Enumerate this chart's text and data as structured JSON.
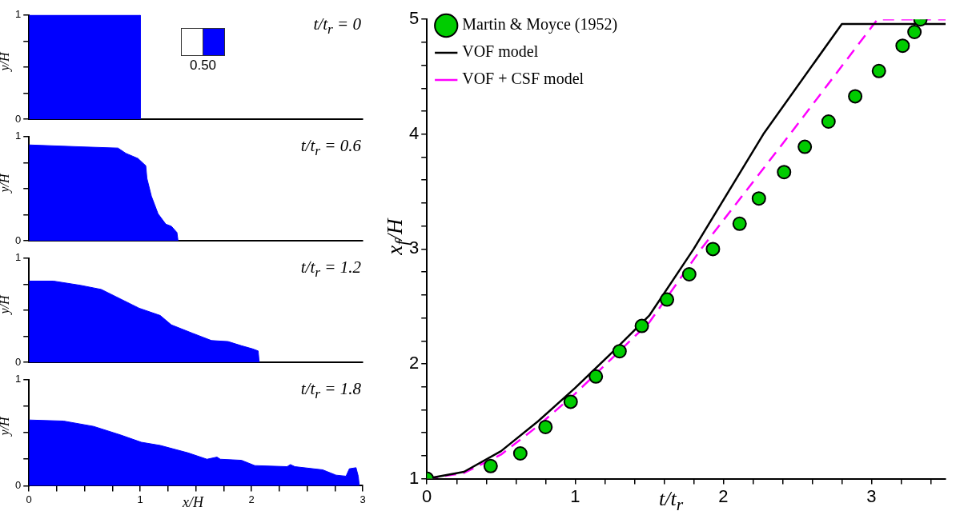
{
  "chart_data": [
    {
      "type": "area",
      "title": "t/t$_{r}$ = 0",
      "ylabel": "y/H",
      "annotations": [
        "0.50"
      ],
      "xlim": [
        0,
        3
      ],
      "ylim": [
        0,
        1
      ],
      "yticks": [
        0,
        {
          "value": 0.25,
          "label": null
        },
        {
          "value": 0.5,
          "label": null
        },
        {
          "value": 0.75,
          "label": null
        },
        1
      ],
      "tick_labels": "y",
      "color": "#0000ff",
      "x": [
        0,
        1,
        1
      ],
      "values": [
        1,
        1,
        0
      ]
    },
    {
      "type": "area",
      "title": "t/t$_{r}$ = 0.6",
      "ylabel": "y/H",
      "xlim": [
        0,
        3
      ],
      "ylim": [
        0,
        1
      ],
      "yticks": [
        0,
        {
          "value": 0.25,
          "label": null
        },
        {
          "value": 0.5,
          "label": null
        },
        {
          "value": 0.75,
          "label": null
        },
        1
      ],
      "tick_labels": "y",
      "color": "#0000ff",
      "x": [
        0,
        0.51,
        0.8,
        0.87,
        0.98,
        1.05,
        1.06,
        1.1,
        1.16,
        1.23,
        1.28,
        1.33,
        1.34
      ],
      "values": [
        0.92,
        0.9,
        0.89,
        0.84,
        0.79,
        0.72,
        0.6,
        0.43,
        0.26,
        0.16,
        0.14,
        0.08,
        0
      ]
    },
    {
      "type": "area",
      "title": "t/t$_{r}$ = 1.2",
      "ylabel": "y/H",
      "xlim": [
        0,
        3
      ],
      "ylim": [
        0,
        1
      ],
      "yticks": [
        0,
        {
          "value": 0.25,
          "label": null
        },
        {
          "value": 0.5,
          "label": null
        },
        {
          "value": 0.75,
          "label": null
        },
        1
      ],
      "tick_labels": "y",
      "color": "#0000ff",
      "x": [
        0,
        0.22,
        0.46,
        0.65,
        0.82,
        0.99,
        1.18,
        1.28,
        1.47,
        1.64,
        1.79,
        1.91,
        2.01,
        2.06,
        2.07
      ],
      "values": [
        0.78,
        0.78,
        0.74,
        0.7,
        0.61,
        0.52,
        0.45,
        0.36,
        0.28,
        0.21,
        0.2,
        0.16,
        0.13,
        0.11,
        0
      ]
    },
    {
      "type": "area",
      "title": "t/t$_{r}$ = 1.8",
      "ylabel": "y/H",
      "xlabel": "x/H",
      "xlim": [
        0,
        3
      ],
      "ylim": [
        0,
        1
      ],
      "xticks": [
        0,
        {
          "value": 0.25,
          "label": null
        },
        {
          "value": 0.5,
          "label": null
        },
        {
          "value": 0.75,
          "label": null
        },
        1,
        {
          "value": 1.25,
          "label": null
        },
        {
          "value": 1.5,
          "label": null
        },
        {
          "value": 1.75,
          "label": null
        },
        2,
        {
          "value": 2.25,
          "label": null
        },
        {
          "value": 2.5,
          "label": null
        },
        {
          "value": 2.75,
          "label": null
        },
        3
      ],
      "yticks": [
        0,
        {
          "value": 0.25,
          "label": null
        },
        {
          "value": 0.5,
          "label": null
        },
        {
          "value": 0.75,
          "label": null
        },
        1
      ],
      "color": "#0000ff",
      "x": [
        0,
        0.31,
        0.58,
        0.82,
        1.01,
        1.18,
        1.43,
        1.6,
        1.69,
        1.72,
        1.91,
        2.03,
        2.32,
        2.35,
        2.39,
        2.64,
        2.76,
        2.85,
        2.88,
        2.94,
        2.96,
        2.97
      ],
      "values": [
        0.62,
        0.61,
        0.56,
        0.48,
        0.41,
        0.38,
        0.31,
        0.25,
        0.27,
        0.25,
        0.24,
        0.19,
        0.18,
        0.2,
        0.18,
        0.15,
        0.1,
        0.09,
        0.16,
        0.17,
        0.09,
        0
      ]
    },
    {
      "type": "line",
      "xlabel": "t/t$_{r}$",
      "ylabel": "x$_{f}$/H",
      "legend": "top left",
      "xlim": [
        0,
        3.5
      ],
      "ylim": [
        1,
        5
      ],
      "xticks": [
        0,
        {
          "value": 0.2,
          "label": null
        },
        {
          "value": 0.4,
          "label": null
        },
        {
          "value": 0.6,
          "label": null
        },
        {
          "value": 0.8,
          "label": null
        },
        1,
        {
          "value": 1.2,
          "label": null
        },
        {
          "value": 1.4,
          "label": null
        },
        {
          "value": 1.6,
          "label": null
        },
        {
          "value": 1.8,
          "label": null
        },
        2,
        {
          "value": 2.2,
          "label": null
        },
        {
          "value": 2.4,
          "label": null
        },
        {
          "value": 2.6,
          "label": null
        },
        {
          "value": 2.8,
          "label": null
        },
        3,
        {
          "value": 3.2,
          "label": null
        },
        {
          "value": 3.4,
          "label": null
        }
      ],
      "yticks": [
        1,
        {
          "value": 1.2,
          "label": null
        },
        {
          "value": 1.4,
          "label": null
        },
        {
          "value": 1.6,
          "label": null
        },
        {
          "value": 1.8,
          "label": null
        },
        2,
        {
          "value": 2.2,
          "label": null
        },
        {
          "value": 2.4,
          "label": null
        },
        {
          "value": 2.6,
          "label": null
        },
        {
          "value": 2.8,
          "label": null
        },
        3,
        {
          "value": 3.2,
          "label": null
        },
        {
          "value": 3.4,
          "label": null
        },
        {
          "value": 3.6,
          "label": null
        },
        {
          "value": 3.8,
          "label": null
        },
        4,
        {
          "value": 4.2,
          "label": null
        },
        {
          "value": 4.4,
          "label": null
        },
        {
          "value": 4.6,
          "label": null
        },
        {
          "value": 4.8,
          "label": null
        },
        5
      ],
      "series": [
        {
          "name": "Martin & Moyce (1952)",
          "type": "scatter",
          "marker": "circle",
          "color": "#00cc00",
          "x": [
            0,
            0.43,
            0.63,
            0.8,
            0.97,
            1.14,
            1.3,
            1.45,
            1.62,
            1.77,
            1.93,
            2.11,
            2.24,
            2.41,
            2.55,
            2.71,
            2.89,
            3.05,
            3.21,
            3.29,
            3.33
          ],
          "values": [
            1,
            1.11,
            1.22,
            1.45,
            1.67,
            1.89,
            2.11,
            2.33,
            2.56,
            2.78,
            3.0,
            3.22,
            3.44,
            3.67,
            3.89,
            4.11,
            4.33,
            4.55,
            4.77,
            4.89,
            5.0
          ]
        },
        {
          "name": "VOF model",
          "type": "line",
          "line_style": "solid",
          "color": "#000000",
          "x": [
            0,
            0.25,
            0.5,
            0.75,
            1,
            1.25,
            1.5,
            1.8,
            2.27,
            2.8,
            3.5
          ],
          "values": [
            1,
            1.06,
            1.24,
            1.5,
            1.79,
            2.1,
            2.42,
            3.0,
            4.0,
            4.96,
            4.96
          ]
        },
        {
          "name": "VOF + CSF model",
          "type": "line",
          "line_style": "dashed",
          "color": "#ff00ff",
          "x": [
            0,
            0.25,
            0.5,
            0.75,
            1,
            1.25,
            1.5,
            1.85,
            2.45,
            3.04,
            3.5
          ],
          "values": [
            1,
            1.05,
            1.21,
            1.46,
            1.74,
            2.05,
            2.36,
            3.0,
            4.0,
            5.0,
            5.0
          ]
        }
      ]
    }
  ]
}
